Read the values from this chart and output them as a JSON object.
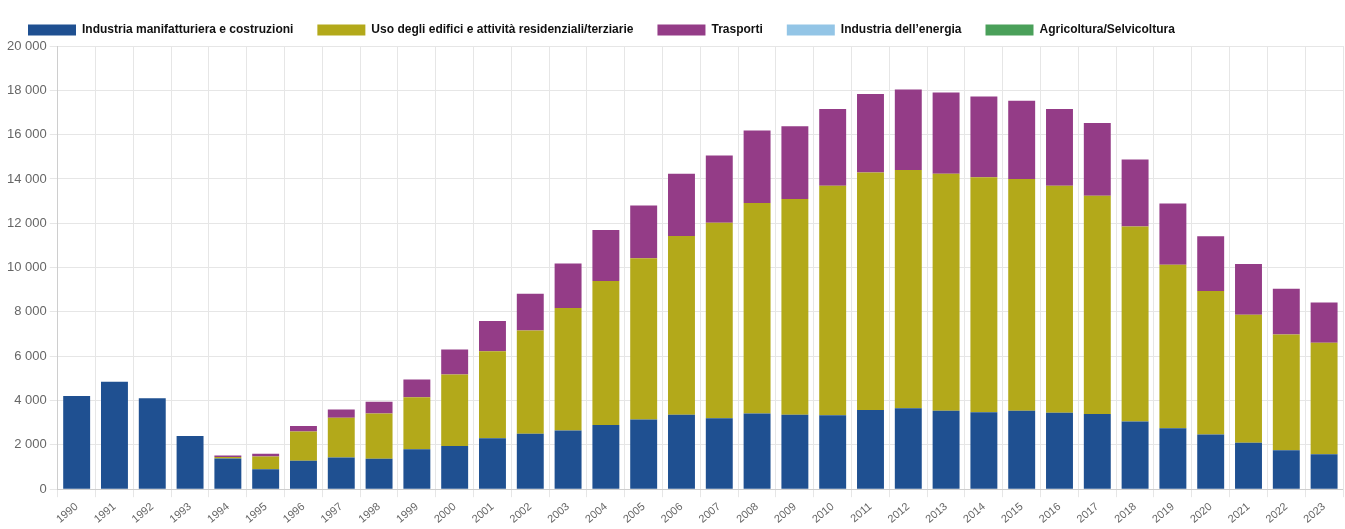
{
  "chart_data": {
    "type": "bar",
    "stacked": true,
    "grid": true,
    "legend": "top",
    "categories": [
      "1990",
      "1991",
      "1992",
      "1993",
      "1994",
      "1995",
      "1996",
      "1997",
      "1998",
      "1999",
      "2000",
      "2001",
      "2002",
      "2003",
      "2004",
      "2005",
      "2006",
      "2007",
      "2008",
      "2009",
      "2010",
      "2011",
      "2012",
      "2013",
      "2014",
      "2015",
      "2016",
      "2017",
      "2018",
      "2019",
      "2020",
      "2021",
      "2022",
      "2023"
    ],
    "ylim": [
      0,
      20000
    ],
    "yticks": [
      {
        "value": 0,
        "label": "0"
      },
      {
        "value": 2000,
        "label": "2 000"
      },
      {
        "value": 4000,
        "label": "4 000"
      },
      {
        "value": 6000,
        "label": "6 000"
      },
      {
        "value": 8000,
        "label": "8 000"
      },
      {
        "value": 10000,
        "label": "10 000"
      },
      {
        "value": 12000,
        "label": "12 000"
      },
      {
        "value": 14000,
        "label": "14 000"
      },
      {
        "value": 16000,
        "label": "16 000"
      },
      {
        "value": 18000,
        "label": "18 000"
      },
      {
        "value": 20000,
        "label": "20 000"
      }
    ],
    "series": [
      {
        "name": "Industria manifatturiera e costruzioni",
        "color": "#1f5091",
        "values": [
          4200,
          4850,
          4100,
          2400,
          1380,
          900,
          1280,
          1430,
          1370,
          1800,
          1950,
          2300,
          2500,
          2650,
          2900,
          3140,
          3360,
          3200,
          3420,
          3360,
          3330,
          3570,
          3650,
          3540,
          3470,
          3540,
          3450,
          3390,
          3050,
          2750,
          2470,
          2100,
          1760,
          1580
        ]
      },
      {
        "name": "Uso degli edifici e attività residenziali/terziarie",
        "color": "#b3a91a",
        "values": [
          0,
          0,
          0,
          0,
          70,
          570,
          1320,
          1790,
          2050,
          2350,
          3230,
          3920,
          4660,
          5530,
          6490,
          7280,
          8070,
          8820,
          9500,
          9740,
          10360,
          10720,
          10750,
          10690,
          10610,
          10460,
          10240,
          9850,
          8800,
          7380,
          6470,
          5770,
          5220,
          5030
        ]
      },
      {
        "name": "Trasporti",
        "color": "#943c87",
        "values": [
          0,
          0,
          0,
          0,
          70,
          130,
          250,
          380,
          530,
          800,
          1120,
          1370,
          1660,
          2000,
          2310,
          2380,
          2800,
          3040,
          3270,
          3280,
          3470,
          3540,
          3640,
          3670,
          3640,
          3530,
          3470,
          3280,
          3030,
          2760,
          2470,
          2290,
          2070,
          1810
        ]
      },
      {
        "name": "Industria dell’energia",
        "color": "#93c5e6",
        "values": [
          0,
          0,
          0,
          0,
          0,
          0,
          0,
          0,
          0,
          0,
          0,
          0,
          0,
          0,
          0,
          0,
          0,
          0,
          0,
          0,
          0,
          0,
          0,
          0,
          0,
          0,
          0,
          0,
          0,
          0,
          0,
          0,
          0,
          0
        ]
      },
      {
        "name": "Agricoltura/Selvicoltura",
        "color": "#4aa05a",
        "values": [
          0,
          0,
          0,
          0,
          0,
          0,
          0,
          0,
          0,
          0,
          0,
          0,
          0,
          0,
          0,
          0,
          0,
          0,
          0,
          0,
          0,
          0,
          0,
          0,
          0,
          0,
          0,
          0,
          0,
          0,
          0,
          0,
          0,
          0
        ]
      }
    ]
  }
}
